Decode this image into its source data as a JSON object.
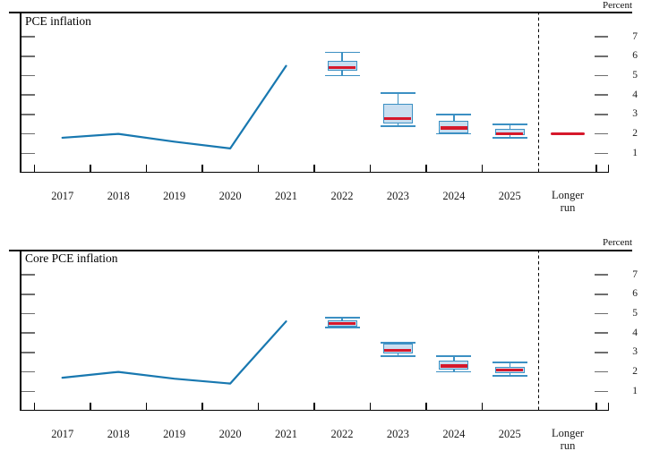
{
  "chart_data": [
    {
      "type": "line+boxplot",
      "title": "PCE inflation",
      "ylabel": "Percent",
      "ylim": [
        0,
        8.3
      ],
      "yticks": [
        7,
        6,
        5,
        4,
        3,
        2,
        1
      ],
      "grid": false,
      "x_labels": [
        "2017",
        "2018",
        "2019",
        "2020",
        "2021",
        "2022",
        "2023",
        "2024",
        "2025"
      ],
      "longer_run_label": "Longer run",
      "history": {
        "years": [
          "2017",
          "2018",
          "2019",
          "2020",
          "2021"
        ],
        "values": [
          1.8,
          2.0,
          1.6,
          1.25,
          5.5
        ]
      },
      "projections": [
        {
          "year": "2022",
          "median": 5.4,
          "central_tendency": [
            5.3,
            5.7
          ],
          "range": [
            5.0,
            6.2
          ]
        },
        {
          "year": "2023",
          "median": 2.8,
          "central_tendency": [
            2.6,
            3.5
          ],
          "range": [
            2.4,
            4.1
          ]
        },
        {
          "year": "2024",
          "median": 2.3,
          "central_tendency": [
            2.1,
            2.6
          ],
          "range": [
            2.0,
            3.0
          ]
        },
        {
          "year": "2025",
          "median": 2.0,
          "central_tendency": [
            2.0,
            2.2
          ],
          "range": [
            1.8,
            2.5
          ]
        }
      ],
      "longer_run_median": 2.0
    },
    {
      "type": "line+boxplot",
      "title": "Core PCE inflation",
      "ylabel": "Percent",
      "ylim": [
        0,
        8.3
      ],
      "yticks": [
        7,
        6,
        5,
        4,
        3,
        2,
        1
      ],
      "grid": false,
      "x_labels": [
        "2017",
        "2018",
        "2019",
        "2020",
        "2021",
        "2022",
        "2023",
        "2024",
        "2025"
      ],
      "longer_run_label": "Longer run",
      "history": {
        "years": [
          "2017",
          "2018",
          "2019",
          "2020",
          "2021"
        ],
        "values": [
          1.7,
          2.0,
          1.65,
          1.4,
          4.6
        ]
      },
      "projections": [
        {
          "year": "2022",
          "median": 4.5,
          "central_tendency": [
            4.4,
            4.6
          ],
          "range": [
            4.3,
            4.8
          ]
        },
        {
          "year": "2023",
          "median": 3.1,
          "central_tendency": [
            3.0,
            3.4
          ],
          "range": [
            2.8,
            3.5
          ]
        },
        {
          "year": "2024",
          "median": 2.3,
          "central_tendency": [
            2.2,
            2.5
          ],
          "range": [
            2.0,
            2.8
          ]
        },
        {
          "year": "2025",
          "median": 2.1,
          "central_tendency": [
            2.0,
            2.2
          ],
          "range": [
            1.8,
            2.5
          ]
        }
      ],
      "longer_run_median": null
    }
  ],
  "colors": {
    "history_line": "#1878b0",
    "box_fill": "#c9def0",
    "box_border": "#3c90c3",
    "median": "#d6182b",
    "axis": "#000000",
    "tick_dash": "#6e6e6e",
    "text": "#1a1a1a"
  }
}
